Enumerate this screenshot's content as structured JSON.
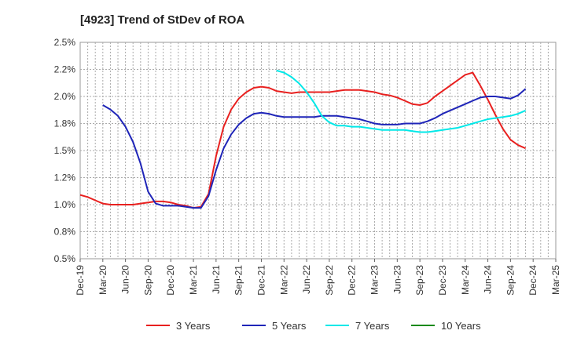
{
  "chart_data": {
    "type": "line",
    "title": "[4923]  Trend of StDev of ROA",
    "xlabel": "",
    "ylabel": "",
    "x_ticks": [
      "Dec-19",
      "Mar-20",
      "Jun-20",
      "Sep-20",
      "Dec-20",
      "Mar-21",
      "Jun-21",
      "Sep-21",
      "Dec-21",
      "Mar-22",
      "Jun-22",
      "Sep-22",
      "Dec-22",
      "Mar-23",
      "Jun-23",
      "Sep-23",
      "Dec-23",
      "Mar-24",
      "Jun-24",
      "Sep-24",
      "Dec-24",
      "Mar-25"
    ],
    "y_ticks": [
      "0.5%",
      "0.8%",
      "1.0%",
      "1.2%",
      "1.5%",
      "1.8%",
      "2.0%",
      "2.2%",
      "2.5%"
    ],
    "ylim": [
      0.5,
      2.5
    ],
    "grid": true,
    "legend_position": "bottom",
    "series": [
      {
        "name": "3 Years",
        "color": "#e8201f",
        "points": [
          [
            "Dec-19",
            1.09
          ],
          [
            "Jan-20",
            1.07
          ],
          [
            "Feb-20",
            1.04
          ],
          [
            "Mar-20",
            1.01
          ],
          [
            "Apr-20",
            1.0
          ],
          [
            "May-20",
            1.0
          ],
          [
            "Jun-20",
            1.0
          ],
          [
            "Jul-20",
            1.0
          ],
          [
            "Aug-20",
            1.01
          ],
          [
            "Sep-20",
            1.02
          ],
          [
            "Oct-20",
            1.03
          ],
          [
            "Nov-20",
            1.03
          ],
          [
            "Dec-20",
            1.02
          ],
          [
            "Jan-21",
            1.0
          ],
          [
            "Feb-21",
            0.99
          ],
          [
            "Mar-21",
            0.97
          ],
          [
            "Apr-21",
            0.98
          ],
          [
            "May-21",
            1.1
          ],
          [
            "Jun-21",
            1.45
          ],
          [
            "Jul-21",
            1.72
          ],
          [
            "Aug-21",
            1.88
          ],
          [
            "Sep-21",
            1.98
          ],
          [
            "Oct-21",
            2.04
          ],
          [
            "Nov-21",
            2.08
          ],
          [
            "Dec-21",
            2.09
          ],
          [
            "Jan-22",
            2.08
          ],
          [
            "Feb-22",
            2.05
          ],
          [
            "Mar-22",
            2.04
          ],
          [
            "Apr-22",
            2.03
          ],
          [
            "May-22",
            2.04
          ],
          [
            "Jun-22",
            2.04
          ],
          [
            "Jul-22",
            2.04
          ],
          [
            "Aug-22",
            2.04
          ],
          [
            "Sep-22",
            2.04
          ],
          [
            "Oct-22",
            2.05
          ],
          [
            "Nov-22",
            2.06
          ],
          [
            "Dec-22",
            2.06
          ],
          [
            "Jan-23",
            2.06
          ],
          [
            "Feb-23",
            2.05
          ],
          [
            "Mar-23",
            2.04
          ],
          [
            "Apr-23",
            2.02
          ],
          [
            "May-23",
            2.01
          ],
          [
            "Jun-23",
            1.99
          ],
          [
            "Jul-23",
            1.96
          ],
          [
            "Aug-23",
            1.93
          ],
          [
            "Sep-23",
            1.92
          ],
          [
            "Oct-23",
            1.94
          ],
          [
            "Nov-23",
            2.0
          ],
          [
            "Dec-23",
            2.05
          ],
          [
            "Jan-24",
            2.1
          ],
          [
            "Feb-24",
            2.15
          ],
          [
            "Mar-24",
            2.2
          ],
          [
            "Apr-24",
            2.22
          ],
          [
            "May-24",
            2.1
          ],
          [
            "Jun-24",
            1.97
          ],
          [
            "Jul-24",
            1.83
          ],
          [
            "Aug-24",
            1.7
          ],
          [
            "Sep-24",
            1.6
          ],
          [
            "Oct-24",
            1.55
          ],
          [
            "Nov-24",
            1.52
          ]
        ]
      },
      {
        "name": "5 Years",
        "color": "#1f25b8",
        "points": [
          [
            "Mar-20",
            1.92
          ],
          [
            "Apr-20",
            1.88
          ],
          [
            "May-20",
            1.82
          ],
          [
            "Jun-20",
            1.72
          ],
          [
            "Jul-20",
            1.58
          ],
          [
            "Aug-20",
            1.38
          ],
          [
            "Sep-20",
            1.12
          ],
          [
            "Oct-20",
            1.01
          ],
          [
            "Nov-20",
            0.99
          ],
          [
            "Dec-20",
            0.99
          ],
          [
            "Jan-21",
            0.99
          ],
          [
            "Feb-21",
            0.98
          ],
          [
            "Mar-21",
            0.97
          ],
          [
            "Apr-21",
            0.97
          ],
          [
            "May-21",
            1.08
          ],
          [
            "Jun-21",
            1.32
          ],
          [
            "Jul-21",
            1.52
          ],
          [
            "Aug-21",
            1.65
          ],
          [
            "Sep-21",
            1.74
          ],
          [
            "Oct-21",
            1.8
          ],
          [
            "Nov-21",
            1.84
          ],
          [
            "Dec-21",
            1.85
          ],
          [
            "Jan-22",
            1.84
          ],
          [
            "Feb-22",
            1.82
          ],
          [
            "Mar-22",
            1.81
          ],
          [
            "Apr-22",
            1.81
          ],
          [
            "May-22",
            1.81
          ],
          [
            "Jun-22",
            1.81
          ],
          [
            "Jul-22",
            1.81
          ],
          [
            "Aug-22",
            1.82
          ],
          [
            "Sep-22",
            1.82
          ],
          [
            "Oct-22",
            1.82
          ],
          [
            "Nov-22",
            1.81
          ],
          [
            "Dec-22",
            1.8
          ],
          [
            "Jan-23",
            1.79
          ],
          [
            "Feb-23",
            1.77
          ],
          [
            "Mar-23",
            1.75
          ],
          [
            "Apr-23",
            1.74
          ],
          [
            "May-23",
            1.74
          ],
          [
            "Jun-23",
            1.74
          ],
          [
            "Jul-23",
            1.75
          ],
          [
            "Aug-23",
            1.75
          ],
          [
            "Sep-23",
            1.75
          ],
          [
            "Oct-23",
            1.77
          ],
          [
            "Nov-23",
            1.8
          ],
          [
            "Dec-23",
            1.84
          ],
          [
            "Jan-24",
            1.87
          ],
          [
            "Feb-24",
            1.9
          ],
          [
            "Mar-24",
            1.93
          ],
          [
            "Apr-24",
            1.96
          ],
          [
            "May-24",
            1.99
          ],
          [
            "Jun-24",
            2.0
          ],
          [
            "Jul-24",
            2.0
          ],
          [
            "Aug-24",
            1.99
          ],
          [
            "Sep-24",
            1.98
          ],
          [
            "Oct-24",
            2.01
          ],
          [
            "Nov-24",
            2.07
          ]
        ]
      },
      {
        "name": "7 Years",
        "color": "#00e8e8",
        "points": [
          [
            "Feb-22",
            2.24
          ],
          [
            "Mar-22",
            2.22
          ],
          [
            "Apr-22",
            2.18
          ],
          [
            "May-22",
            2.12
          ],
          [
            "Jun-22",
            2.04
          ],
          [
            "Jul-22",
            1.94
          ],
          [
            "Aug-22",
            1.82
          ],
          [
            "Sep-22",
            1.76
          ],
          [
            "Oct-22",
            1.73
          ],
          [
            "Nov-22",
            1.73
          ],
          [
            "Dec-22",
            1.72
          ],
          [
            "Jan-23",
            1.72
          ],
          [
            "Feb-23",
            1.71
          ],
          [
            "Mar-23",
            1.7
          ],
          [
            "Apr-23",
            1.69
          ],
          [
            "May-23",
            1.69
          ],
          [
            "Jun-23",
            1.69
          ],
          [
            "Jul-23",
            1.69
          ],
          [
            "Aug-23",
            1.68
          ],
          [
            "Sep-23",
            1.67
          ],
          [
            "Oct-23",
            1.67
          ],
          [
            "Nov-23",
            1.68
          ],
          [
            "Dec-23",
            1.69
          ],
          [
            "Jan-24",
            1.7
          ],
          [
            "Feb-24",
            1.71
          ],
          [
            "Mar-24",
            1.73
          ],
          [
            "Apr-24",
            1.75
          ],
          [
            "May-24",
            1.77
          ],
          [
            "Jun-24",
            1.79
          ],
          [
            "Jul-24",
            1.8
          ],
          [
            "Aug-24",
            1.81
          ],
          [
            "Sep-24",
            1.82
          ],
          [
            "Oct-24",
            1.84
          ],
          [
            "Nov-24",
            1.87
          ]
        ]
      },
      {
        "name": "10 Years",
        "color": "#1a8a1a",
        "points": []
      }
    ]
  }
}
